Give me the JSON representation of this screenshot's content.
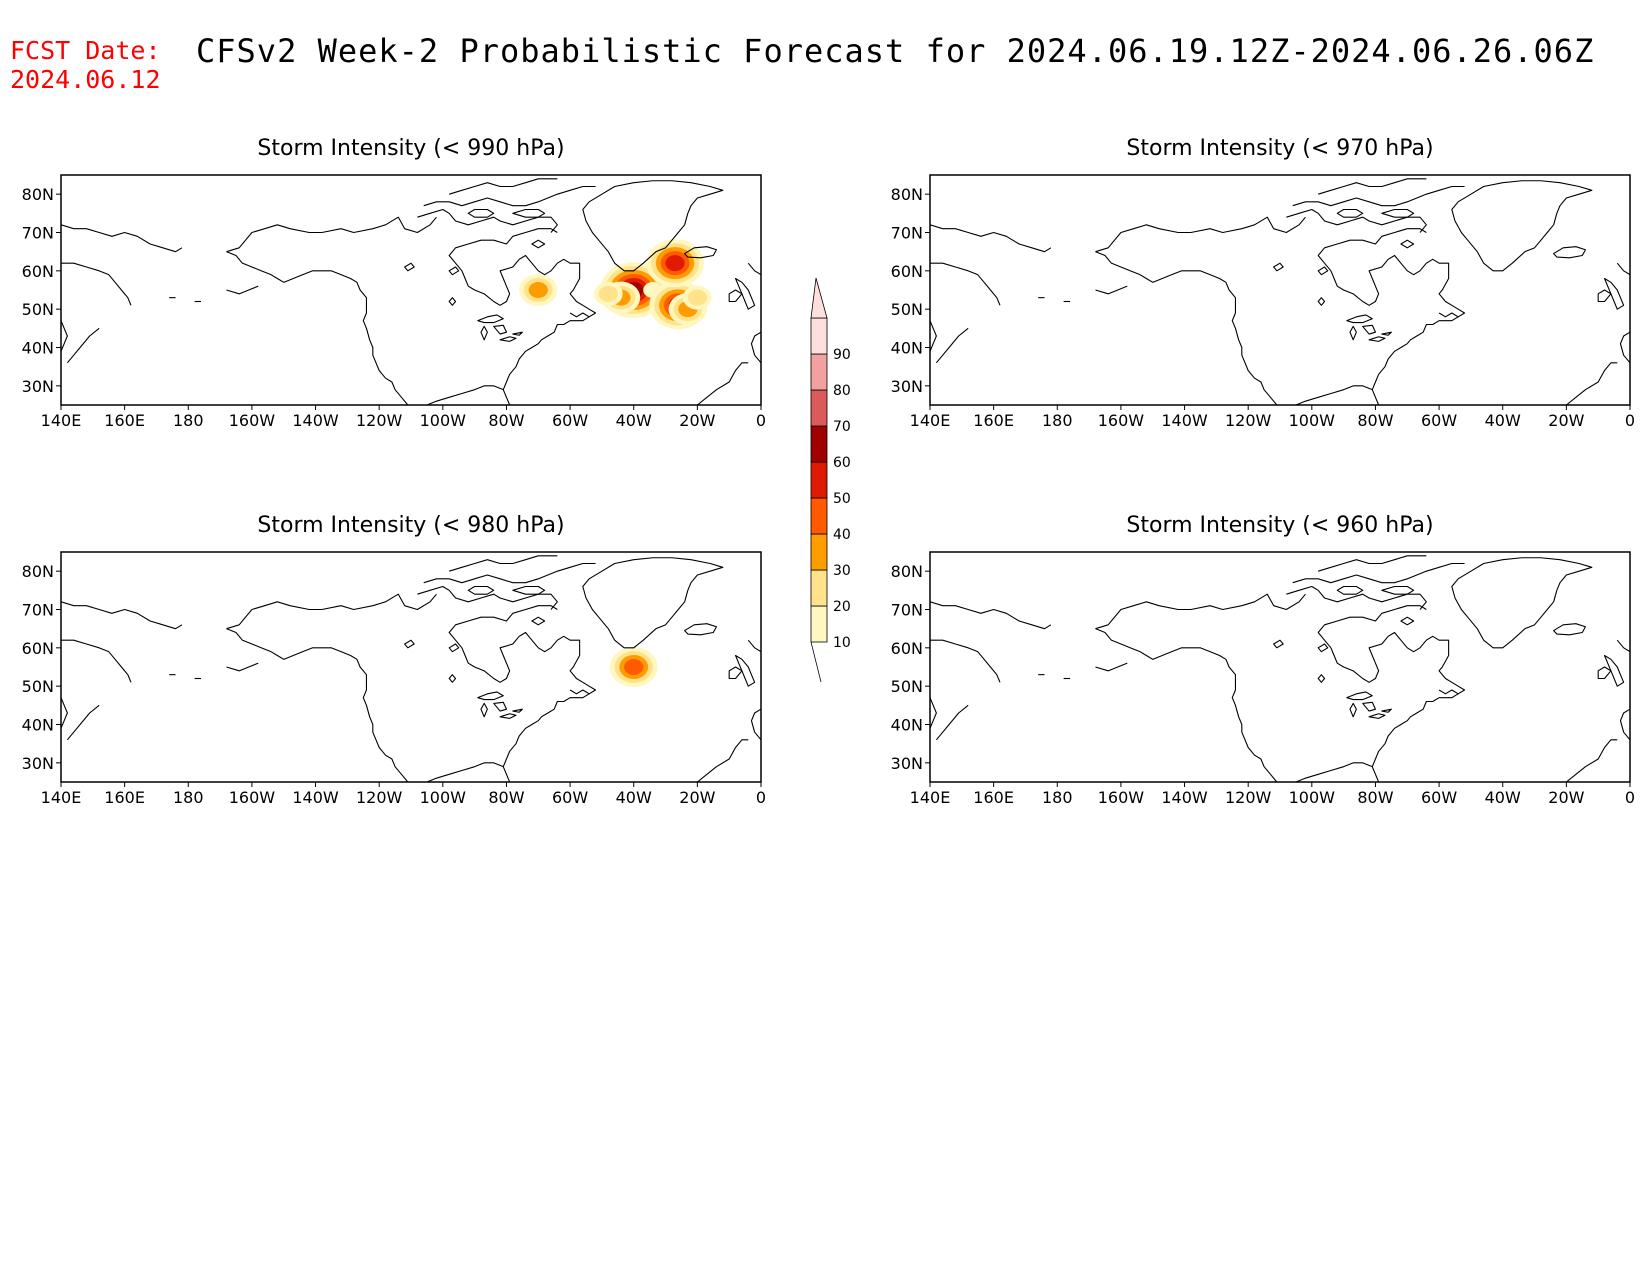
{
  "header": {
    "fcst_label_line1": "FCST Date:",
    "fcst_label_line2": "2024.06.12",
    "title": "CFSv2 Week-2 Probabilistic Forecast for 2024.06.19.12Z-2024.06.26.06Z"
  },
  "map_extent": {
    "lon_min": 140,
    "lon_max": 360,
    "lat_min": 25,
    "lat_max": 85
  },
  "axes": {
    "lon_ticks": [
      {
        "lon": 140,
        "label": "140E"
      },
      {
        "lon": 160,
        "label": "160E"
      },
      {
        "lon": 180,
        "label": "180"
      },
      {
        "lon": 200,
        "label": "160W"
      },
      {
        "lon": 220,
        "label": "140W"
      },
      {
        "lon": 240,
        "label": "120W"
      },
      {
        "lon": 260,
        "label": "100W"
      },
      {
        "lon": 280,
        "label": "80W"
      },
      {
        "lon": 300,
        "label": "60W"
      },
      {
        "lon": 320,
        "label": "40W"
      },
      {
        "lon": 340,
        "label": "20W"
      },
      {
        "lon": 360,
        "label": "0"
      }
    ],
    "lat_ticks": [
      {
        "lat": 80,
        "label": "80N"
      },
      {
        "lat": 70,
        "label": "70N"
      },
      {
        "lat": 60,
        "label": "60N"
      },
      {
        "lat": 50,
        "label": "50N"
      },
      {
        "lat": 40,
        "label": "40N"
      },
      {
        "lat": 30,
        "label": "30N"
      }
    ]
  },
  "panels": [
    {
      "id": "p990",
      "title": "Storm Intensity (< 990 hPa)",
      "blobs": [
        {
          "lon": 320,
          "lat": 55,
          "prob": 60
        },
        {
          "lon": 316,
          "lat": 53,
          "prob": 30
        },
        {
          "lon": 312,
          "lat": 54,
          "prob": 20
        },
        {
          "lon": 326,
          "lat": 55,
          "prob": 10
        },
        {
          "lon": 334,
          "lat": 51,
          "prob": 50
        },
        {
          "lon": 337,
          "lat": 50,
          "prob": 30
        },
        {
          "lon": 340,
          "lat": 53,
          "prob": 20
        },
        {
          "lon": 333,
          "lat": 62,
          "prob": 50
        },
        {
          "lon": 290,
          "lat": 55,
          "prob": 30
        }
      ]
    },
    {
      "id": "p970",
      "title": "Storm Intensity (< 970 hPa)",
      "blobs": []
    },
    {
      "id": "p980",
      "title": "Storm Intensity (< 980 hPa)",
      "blobs": [
        {
          "lon": 320,
          "lat": 55,
          "prob": 40
        }
      ]
    },
    {
      "id": "p960",
      "title": "Storm Intensity (< 960 hPa)",
      "blobs": []
    }
  ],
  "colorbar": {
    "levels": [
      10,
      20,
      30,
      40,
      50,
      60,
      70,
      80,
      90
    ],
    "colors": [
      "#fff7c0",
      "#ffe28a",
      "#ff9c00",
      "#ff5a00",
      "#e01a00",
      "#a00000",
      "#dd5a5a",
      "#f2a0a0",
      "#ffdede"
    ]
  }
}
